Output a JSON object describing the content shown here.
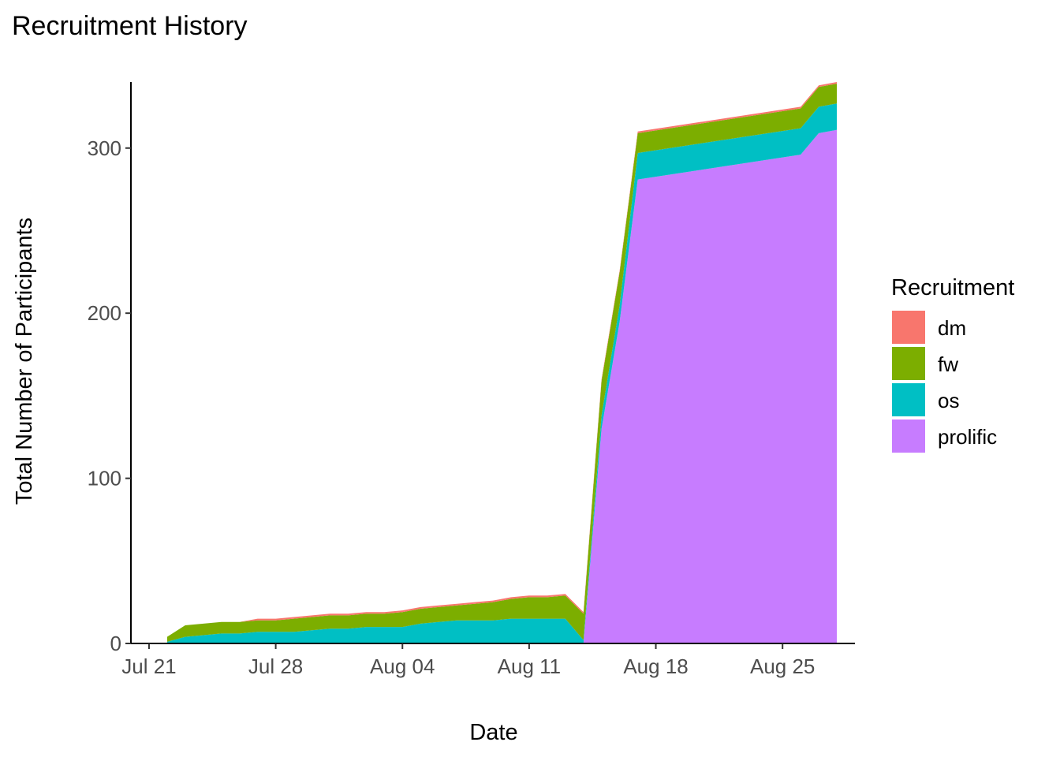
{
  "chart_data": {
    "type": "area",
    "stacked": true,
    "title": "Recruitment History",
    "xlabel": "Date",
    "ylabel": "Total Number of Participants",
    "x_axis": {
      "type": "date",
      "range": [
        "2021-07-20",
        "2021-08-29"
      ],
      "ticks": [
        {
          "value": "2021-07-21",
          "label": "Jul 21"
        },
        {
          "value": "2021-07-28",
          "label": "Jul 28"
        },
        {
          "value": "2021-08-04",
          "label": "Aug 04"
        },
        {
          "value": "2021-08-11",
          "label": "Aug 11"
        },
        {
          "value": "2021-08-18",
          "label": "Aug 18"
        },
        {
          "value": "2021-08-25",
          "label": "Aug 25"
        }
      ]
    },
    "y_axis": {
      "range": [
        0,
        340
      ],
      "ticks": [
        {
          "value": 0,
          "label": "0"
        },
        {
          "value": 100,
          "label": "100"
        },
        {
          "value": 200,
          "label": "200"
        },
        {
          "value": 300,
          "label": "300"
        }
      ]
    },
    "grid": false,
    "legend": {
      "title": "Recruitment",
      "position": "right"
    },
    "x": [
      "2021-07-22",
      "2021-07-23",
      "2021-07-24",
      "2021-07-25",
      "2021-07-26",
      "2021-07-27",
      "2021-07-28",
      "2021-07-29",
      "2021-07-30",
      "2021-07-31",
      "2021-08-01",
      "2021-08-02",
      "2021-08-03",
      "2021-08-04",
      "2021-08-05",
      "2021-08-06",
      "2021-08-07",
      "2021-08-08",
      "2021-08-09",
      "2021-08-10",
      "2021-08-11",
      "2021-08-12",
      "2021-08-13",
      "2021-08-14",
      "2021-08-15",
      "2021-08-16",
      "2021-08-17",
      "2021-08-26",
      "2021-08-27",
      "2021-08-28"
    ],
    "series": [
      {
        "name": "prolific",
        "color": "#C77CFF",
        "values": [
          0,
          0,
          0,
          0,
          0,
          0,
          0,
          0,
          0,
          0,
          0,
          0,
          0,
          0,
          0,
          0,
          0,
          0,
          0,
          0,
          0,
          0,
          0,
          0,
          130,
          195,
          281,
          296,
          309,
          311
        ]
      },
      {
        "name": "os",
        "color": "#00BFC4",
        "values": [
          1,
          4,
          5,
          6,
          6,
          7,
          7,
          7,
          8,
          9,
          9,
          10,
          10,
          10,
          12,
          13,
          14,
          14,
          14,
          15,
          15,
          15,
          15,
          2,
          8,
          10,
          16,
          16,
          16,
          16
        ]
      },
      {
        "name": "fw",
        "color": "#7CAE00",
        "values": [
          3,
          7,
          7,
          7,
          7,
          7,
          7,
          8,
          8,
          8,
          8,
          8,
          8,
          9,
          9,
          9,
          9,
          10,
          11,
          12,
          13,
          13,
          14,
          16,
          21,
          20,
          12,
          12,
          12,
          12
        ]
      },
      {
        "name": "dm",
        "color": "#F8766D",
        "values": [
          0,
          0,
          0,
          0,
          0,
          1,
          1,
          1,
          1,
          1,
          1,
          1,
          1,
          1,
          1,
          1,
          1,
          1,
          1,
          1,
          1,
          1,
          1,
          1,
          1,
          1,
          1,
          1,
          1,
          1
        ]
      }
    ]
  }
}
